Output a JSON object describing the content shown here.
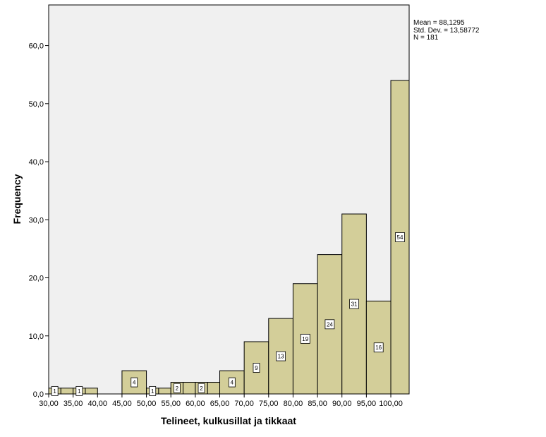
{
  "chart_data": {
    "type": "bar",
    "subtype": "histogram",
    "xlabel": "Telineet, kulkusillat ja tikkaat",
    "ylabel": "Frequency",
    "x_ticks": [
      "30,00",
      "35,00",
      "40,00",
      "45,00",
      "50,00",
      "55,00",
      "60,00",
      "65,00",
      "70,00",
      "75,00",
      "80,00",
      "85,00",
      "90,00",
      "95,00",
      "100,00"
    ],
    "y_ticks": [
      "0,0",
      "10,0",
      "20,0",
      "30,0",
      "40,0",
      "50,0",
      "60,0"
    ],
    "xlim": [
      30,
      103.75
    ],
    "ylim": [
      0,
      67
    ],
    "bins": [
      {
        "start": 30,
        "end": 32.5,
        "count": 1,
        "label": "1"
      },
      {
        "start": 32.5,
        "end": 35,
        "count": 1,
        "label": ""
      },
      {
        "start": 35,
        "end": 37.5,
        "count": 1,
        "label": "1"
      },
      {
        "start": 37.5,
        "end": 40,
        "count": 1,
        "label": ""
      },
      {
        "start": 45,
        "end": 50,
        "count": 4,
        "label": "4"
      },
      {
        "start": 50,
        "end": 52.5,
        "count": 1,
        "label": "1"
      },
      {
        "start": 52.5,
        "end": 55,
        "count": 1,
        "label": ""
      },
      {
        "start": 55,
        "end": 57.5,
        "count": 2,
        "label": "2"
      },
      {
        "start": 57.5,
        "end": 60,
        "count": 2,
        "label": ""
      },
      {
        "start": 60,
        "end": 62.5,
        "count": 2,
        "label": "2"
      },
      {
        "start": 62.5,
        "end": 65,
        "count": 2,
        "label": ""
      },
      {
        "start": 65,
        "end": 70,
        "count": 4,
        "label": "4"
      },
      {
        "start": 70,
        "end": 75,
        "count": 9,
        "label": "9"
      },
      {
        "start": 75,
        "end": 80,
        "count": 13,
        "label": "13"
      },
      {
        "start": 80,
        "end": 85,
        "count": 19,
        "label": "19"
      },
      {
        "start": 85,
        "end": 90,
        "count": 24,
        "label": "24"
      },
      {
        "start": 90,
        "end": 95,
        "count": 31,
        "label": "31"
      },
      {
        "start": 95,
        "end": 100,
        "count": 16,
        "label": "16"
      },
      {
        "start": 100,
        "end": 103.75,
        "count": 54,
        "label": "54"
      }
    ],
    "grid": false,
    "colors": {
      "bar": "#d3ce99",
      "bar_stroke": "#000000",
      "plot_bg": "#f0f0f0",
      "label_bg": "#ffffff"
    }
  },
  "stats": {
    "mean": "Mean = 88,1295",
    "std": "Std. Dev. = 13,58772",
    "n": "N = 181"
  }
}
